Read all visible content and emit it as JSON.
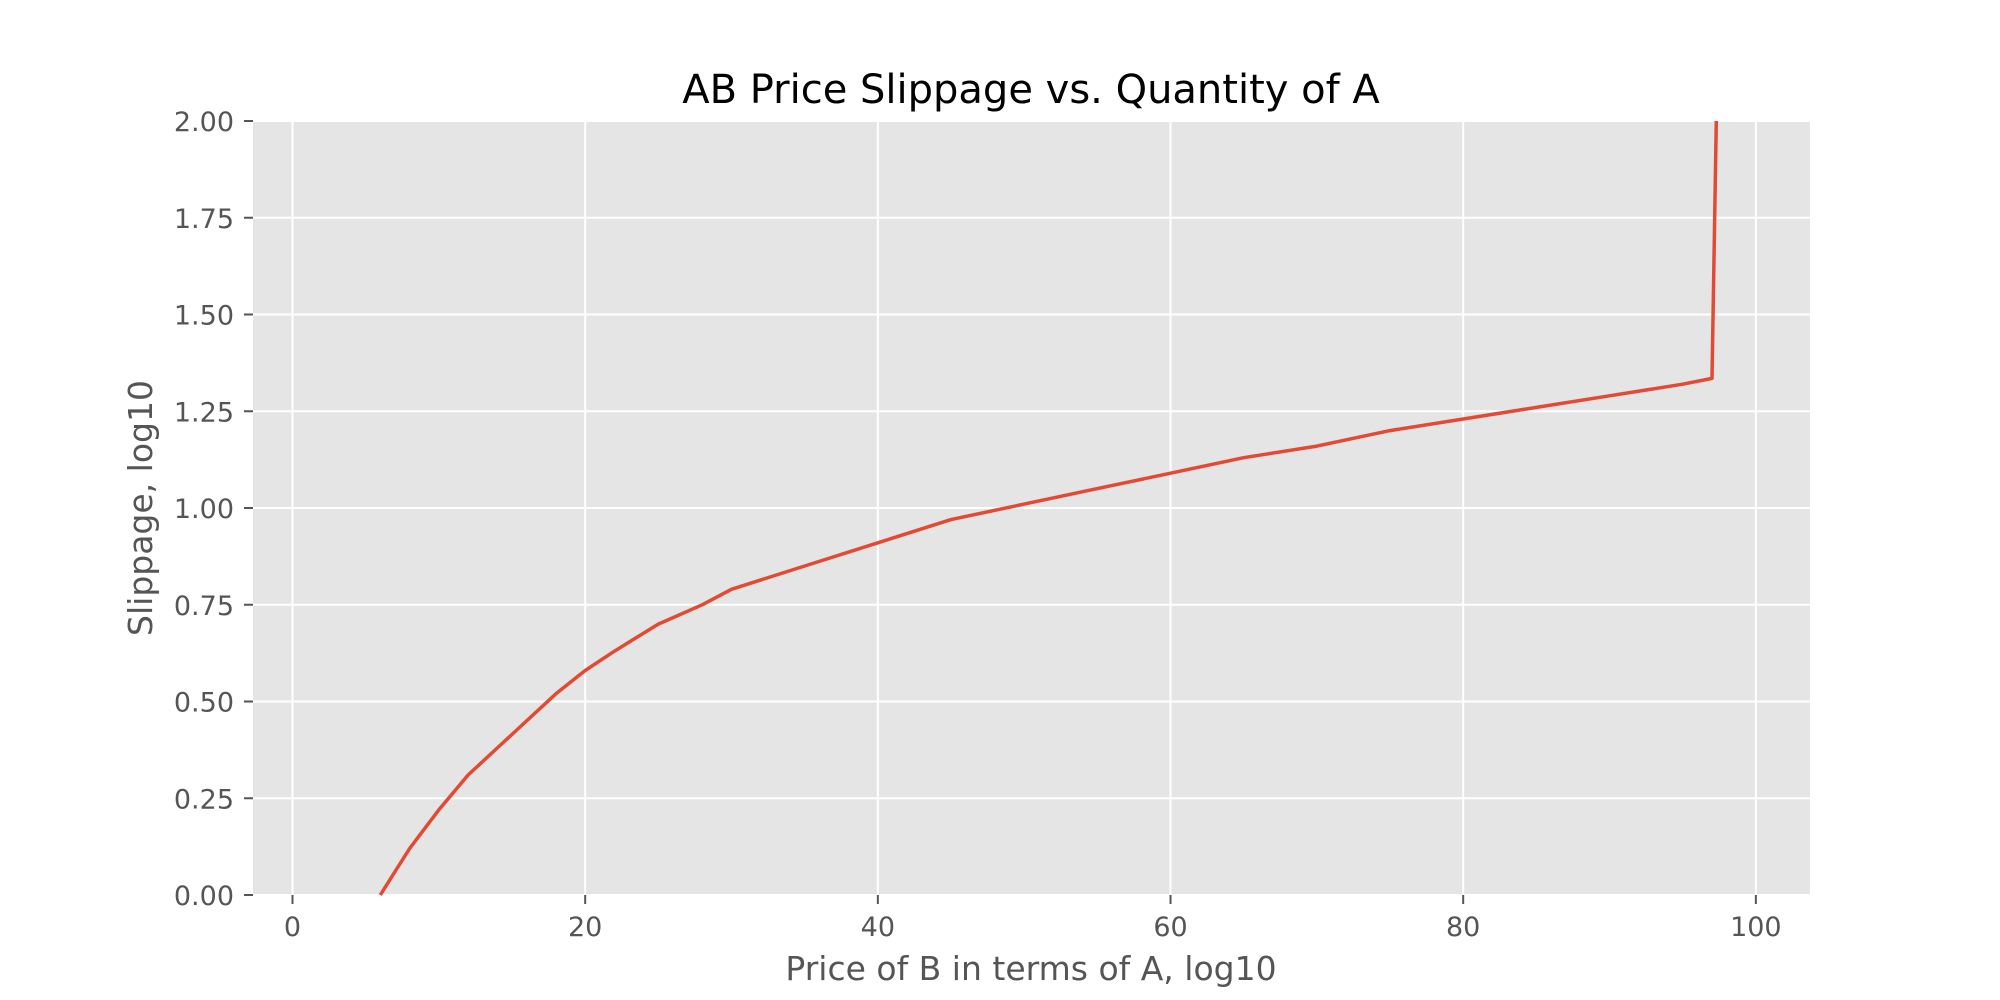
{
  "chart_data": {
    "type": "line",
    "title": "AB Price Slippage vs. Quantity of A",
    "xlabel": "Price of B in terms of A, log10",
    "ylabel": "Slippage, log10",
    "xlim": [
      -2.7,
      103.7
    ],
    "ylim": [
      0,
      2
    ],
    "xticks": [
      0,
      20,
      40,
      60,
      80,
      100
    ],
    "xtick_labels": [
      "0",
      "20",
      "40",
      "60",
      "80",
      "100"
    ],
    "yticks": [
      0,
      0.25,
      0.5,
      0.75,
      1.0,
      1.25,
      1.5,
      1.75,
      2.0
    ],
    "ytick_labels": [
      "0.00",
      "0.25",
      "0.50",
      "0.75",
      "1.00",
      "1.25",
      "1.50",
      "1.75",
      "2.00"
    ],
    "grid": true,
    "colors": {
      "plot_background": "#e5e5e5",
      "grid": "#ffffff",
      "line": "#e24a33",
      "tick_text": "#555555"
    },
    "series": [
      {
        "x": [
          6.0,
          7.0,
          8.0,
          9.0,
          10.0,
          12.0,
          14.0,
          16.0,
          18.0,
          20.0,
          22.0,
          25.0,
          28.0,
          30.0,
          35.0,
          40.0,
          45.0,
          50.0,
          55.0,
          60.0,
          65.0,
          70.0,
          75.0,
          80.0,
          85.0,
          90.0,
          95.0,
          97.0,
          97.3
        ],
        "y": [
          0.0,
          0.06,
          0.12,
          0.17,
          0.22,
          0.31,
          0.38,
          0.45,
          0.52,
          0.58,
          0.63,
          0.7,
          0.75,
          0.79,
          0.85,
          0.91,
          0.97,
          1.01,
          1.05,
          1.09,
          1.13,
          1.16,
          1.2,
          1.23,
          1.26,
          1.29,
          1.32,
          1.335,
          2.0
        ]
      }
    ]
  }
}
